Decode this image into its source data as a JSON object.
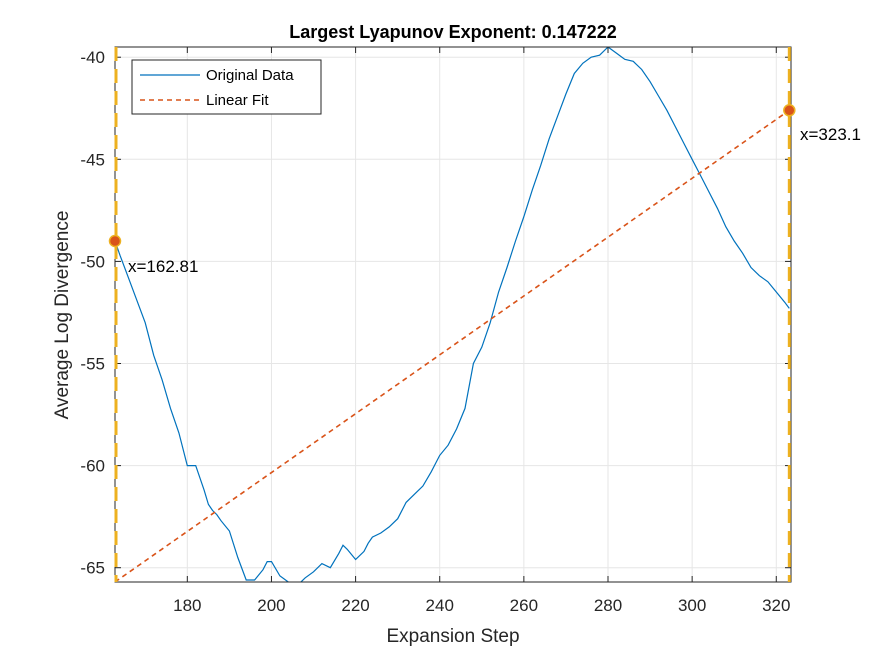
{
  "chart_data": {
    "type": "line",
    "title": "Largest Lyapunov Exponent: 0.147222",
    "xlabel": "Expansion Step",
    "ylabel": "Average Log Divergence",
    "xlim": [
      162.81,
      323.5
    ],
    "ylim": [
      -65.7,
      -39.5
    ],
    "xticks": [
      180,
      200,
      220,
      240,
      260,
      280,
      300,
      320
    ],
    "yticks": [
      -65,
      -60,
      -55,
      -50,
      -45,
      -40
    ],
    "xtick_labels": [
      "180",
      "200",
      "220",
      "240",
      "260",
      "280",
      "300",
      "320"
    ],
    "ytick_labels": [
      "-65",
      "-60",
      "-55",
      "-50",
      "-45",
      "-40"
    ],
    "grid": true,
    "legend_position": "top-left",
    "colors": {
      "original": "#0072BD",
      "fit": "#D95319",
      "vline": "#EDB120",
      "marker": "#D95319",
      "grid": "#e6e6e6",
      "axis": "#262626"
    },
    "series": [
      {
        "name": "Original Data",
        "style": "solid",
        "x": [
          162.81,
          164,
          166,
          168,
          170,
          172,
          174,
          176,
          178,
          180,
          182,
          184,
          185,
          186,
          187,
          188,
          190,
          192,
          194,
          196,
          198,
          199,
          200,
          202,
          204,
          206,
          208,
          210,
          212,
          214,
          216,
          217,
          218,
          220,
          222,
          223,
          224,
          226,
          228,
          230,
          232,
          234,
          236,
          238,
          240,
          242,
          244,
          246,
          248,
          250,
          252,
          254,
          256,
          258,
          260,
          262,
          264,
          266,
          268,
          270,
          272,
          274,
          276,
          278,
          280,
          282,
          284,
          286,
          288,
          290,
          292,
          294,
          296,
          298,
          300,
          302,
          304,
          306,
          308,
          310,
          312,
          314,
          316,
          318,
          320,
          322,
          323.1
        ],
        "y": [
          -49.0,
          -49.7,
          -50.8,
          -51.9,
          -53.0,
          -54.6,
          -55.8,
          -57.2,
          -58.4,
          -60.0,
          -60.0,
          -61.2,
          -61.9,
          -62.2,
          -62.4,
          -62.7,
          -63.2,
          -64.5,
          -65.6,
          -65.6,
          -65.1,
          -64.7,
          -64.7,
          -65.4,
          -65.7,
          -65.9,
          -65.5,
          -65.2,
          -64.8,
          -65.0,
          -64.3,
          -63.9,
          -64.1,
          -64.6,
          -64.2,
          -63.8,
          -63.5,
          -63.3,
          -63.0,
          -62.6,
          -61.8,
          -61.4,
          -61.0,
          -60.3,
          -59.5,
          -59.0,
          -58.2,
          -57.2,
          -55.0,
          -54.2,
          -53.0,
          -51.5,
          -50.3,
          -49.0,
          -47.8,
          -46.5,
          -45.3,
          -44.0,
          -42.9,
          -41.8,
          -40.8,
          -40.3,
          -40.0,
          -39.9,
          -39.5,
          -39.8,
          -40.1,
          -40.2,
          -40.6,
          -41.2,
          -41.9,
          -42.6,
          -43.4,
          -44.2,
          -45.0,
          -45.8,
          -46.6,
          -47.4,
          -48.3,
          -49.0,
          -49.6,
          -50.3,
          -50.7,
          -51.0,
          -51.5,
          -52.0,
          -52.3
        ],
        "note": ""
      },
      {
        "name": "Linear Fit",
        "style": "dashed",
        "x": [
          162.81,
          323.1
        ],
        "y": [
          -65.7,
          -42.6
        ]
      }
    ],
    "vlines": [
      162.81,
      323.1
    ],
    "markers": [
      {
        "x": 162.81,
        "y": -49.0,
        "label": "x=162.81"
      },
      {
        "x": 323.1,
        "y": -42.6,
        "label": "x=323.1"
      }
    ]
  }
}
